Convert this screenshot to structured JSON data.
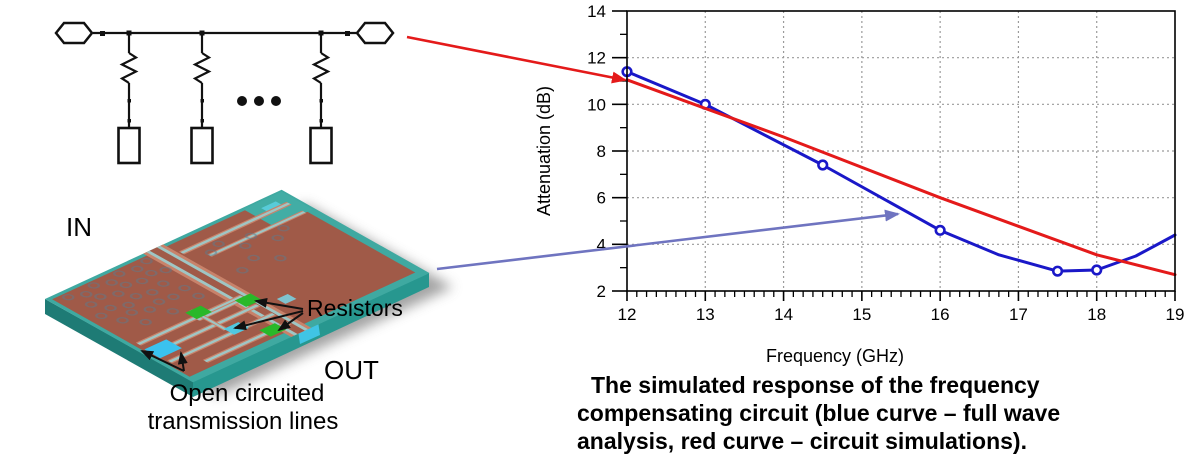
{
  "figure": {
    "board_labels": {
      "in": "IN",
      "out": "OUT",
      "resistors": "Resistors",
      "open_line1": "Open circuited",
      "open_line2": "transmission lines"
    },
    "caption_lines": [
      "The simulated response of the frequency",
      "compensating circuit (blue curve – full wave",
      "analysis, red curve – circuit simulations)."
    ]
  },
  "chart_data": {
    "type": "line",
    "title": "",
    "xlabel": "Frequency (GHz)",
    "ylabel": "Attenuation (dB)",
    "xlim": [
      12,
      19
    ],
    "ylim": [
      2,
      14
    ],
    "x_ticks": [
      12,
      13,
      14,
      15,
      16,
      17,
      18,
      19
    ],
    "y_ticks": [
      2,
      4,
      6,
      8,
      10,
      12,
      14
    ],
    "x_minor_step": 0.125,
    "grid": true,
    "legend": "none",
    "series": [
      {
        "name": "full wave analysis",
        "color": "#1a18c8",
        "marker": "circle",
        "x": [
          12,
          13,
          14.5,
          16,
          16.75,
          17.5,
          18,
          18.5,
          19
        ],
        "y": [
          11.4,
          10.0,
          7.4,
          4.6,
          3.55,
          2.85,
          2.9,
          3.5,
          4.4
        ],
        "markers": [
          [
            12,
            11.4
          ],
          [
            13,
            10.0
          ],
          [
            14.5,
            7.4
          ],
          [
            16,
            4.6
          ],
          [
            17.5,
            2.85
          ],
          [
            18,
            2.9
          ]
        ]
      },
      {
        "name": "circuit simulations",
        "color": "#e41a1a",
        "marker": "none",
        "x": [
          12,
          14,
          16,
          18,
          19
        ],
        "y": [
          11.05,
          8.6,
          6.0,
          3.55,
          2.7
        ],
        "markers": []
      }
    ]
  }
}
